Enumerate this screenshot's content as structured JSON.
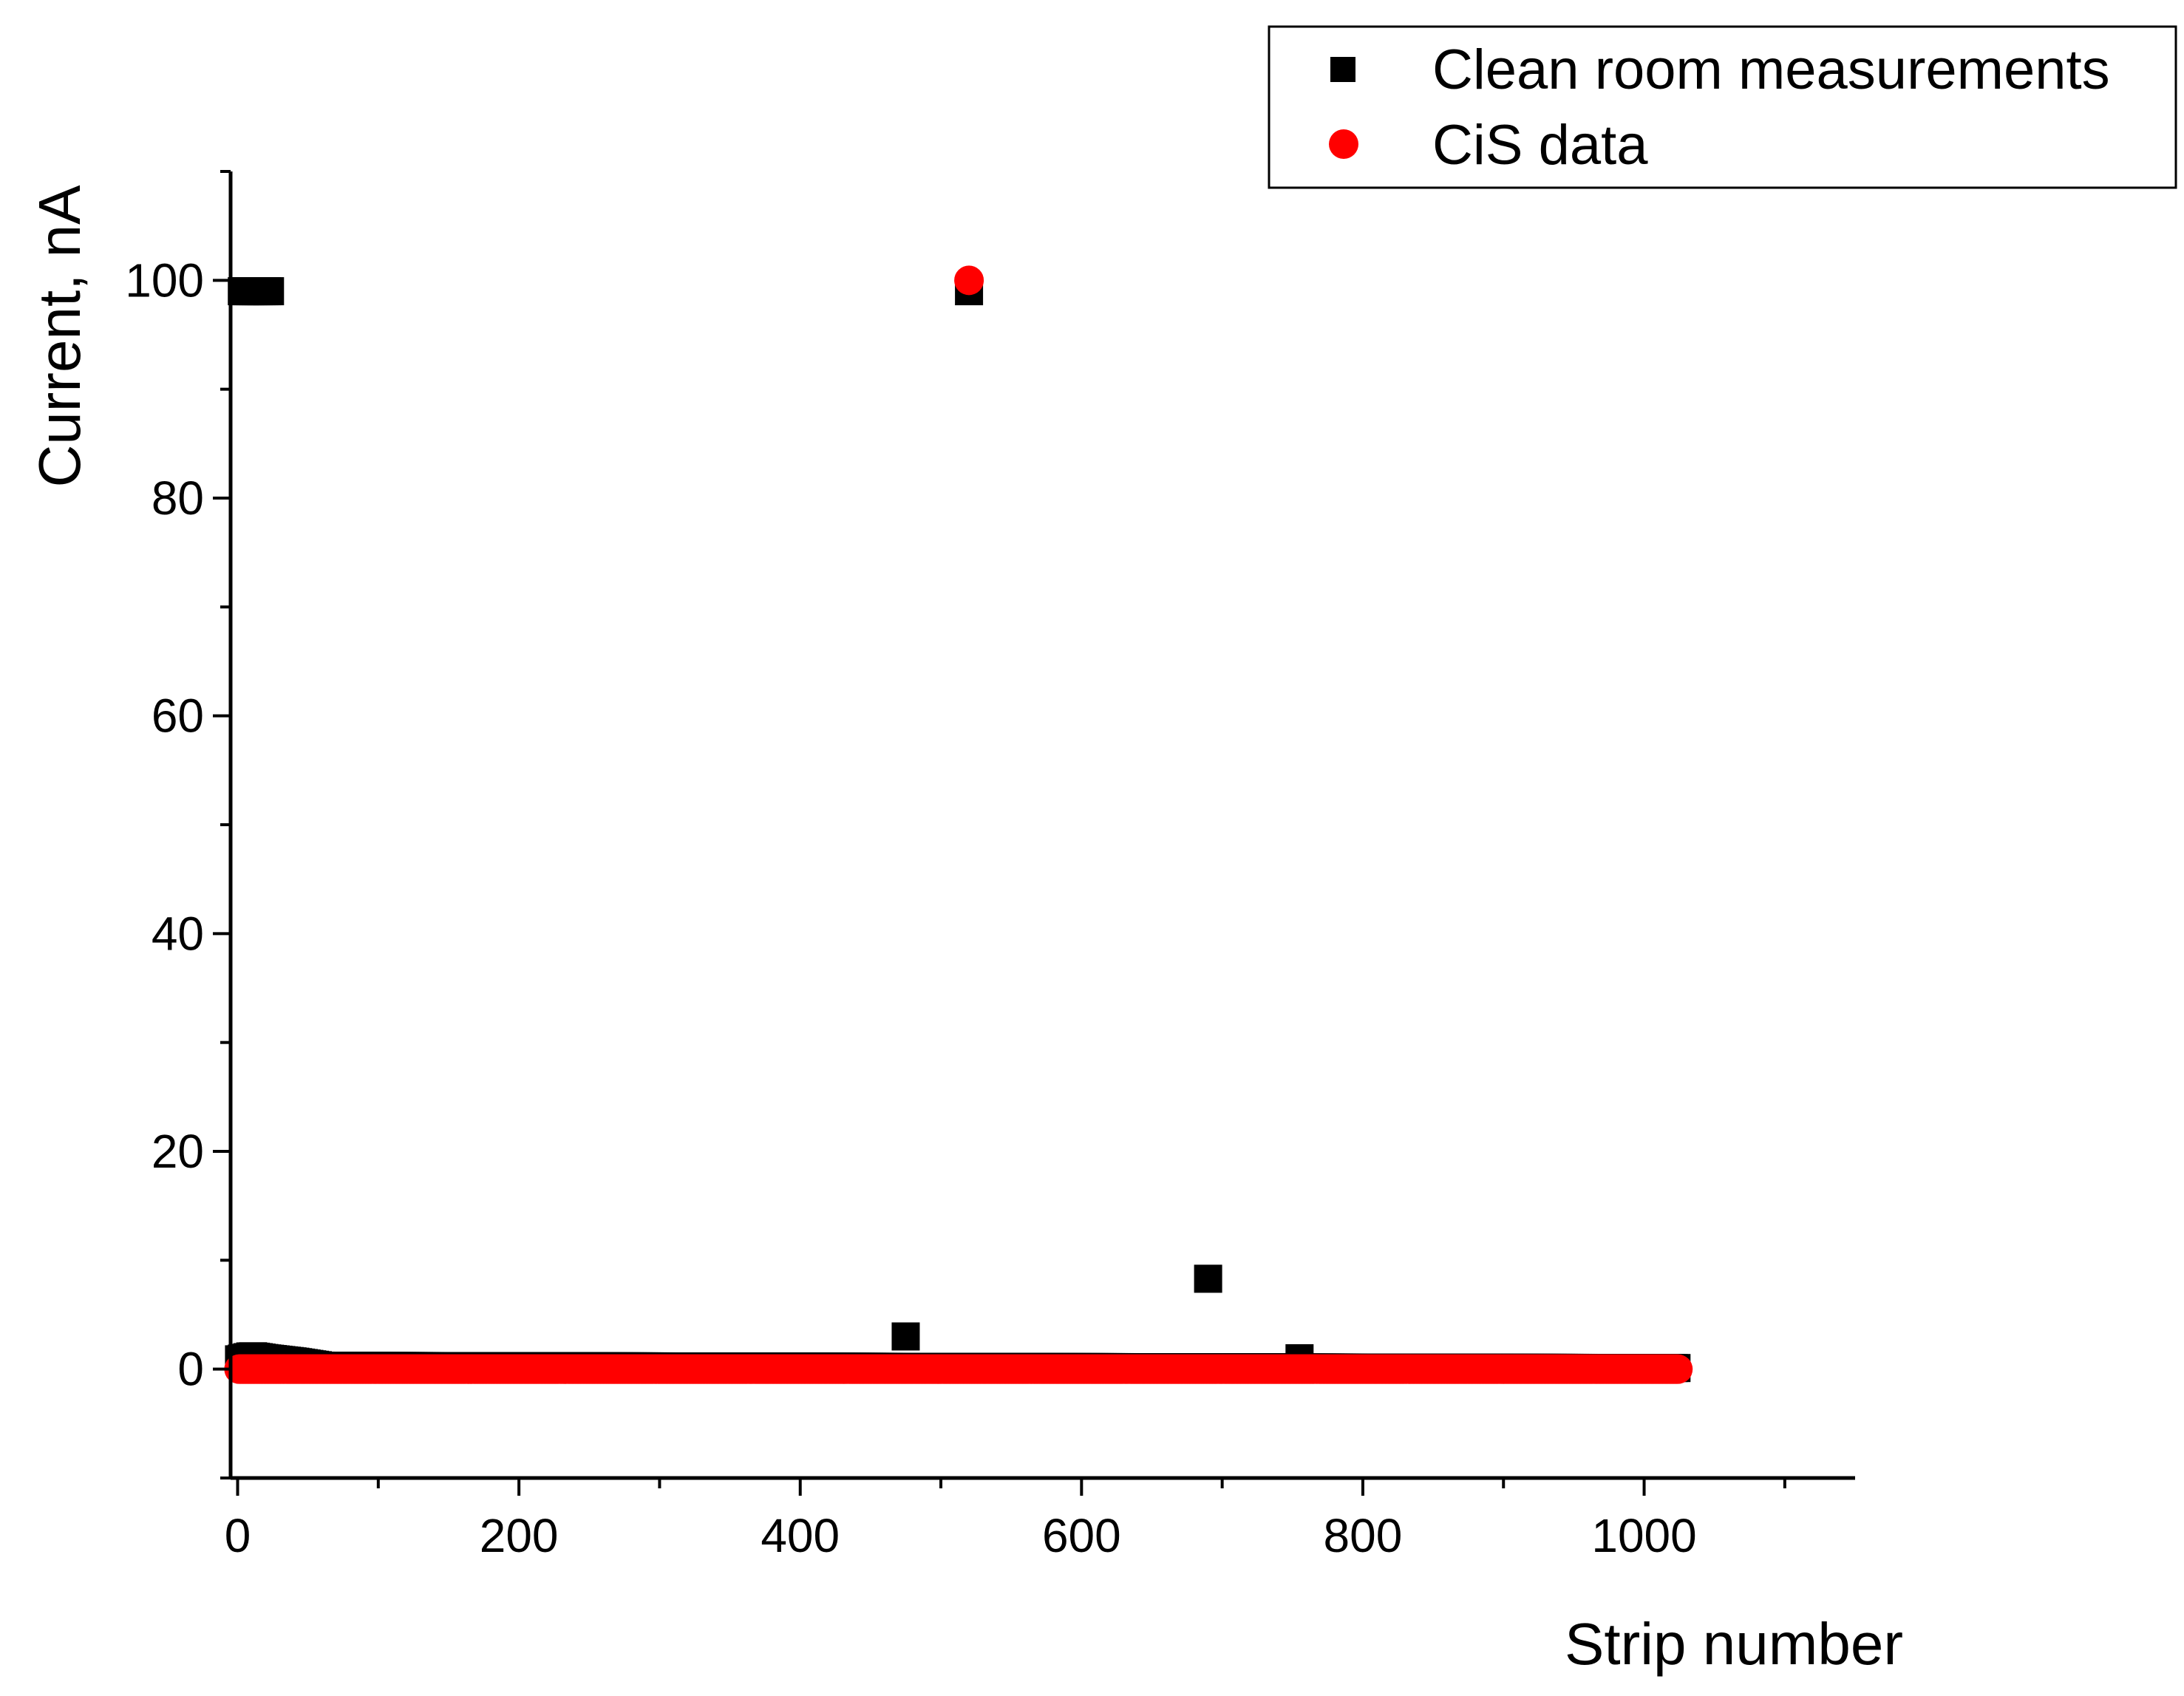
{
  "chart_data": {
    "type": "scatter",
    "xlabel": "Strip number",
    "ylabel": "Current, nA",
    "xlim": [
      -5,
      1150
    ],
    "ylim": [
      -10,
      110
    ],
    "x_ticks": [
      0,
      200,
      400,
      600,
      800,
      1000
    ],
    "y_ticks": [
      0,
      20,
      40,
      60,
      80,
      100
    ],
    "x_minor_step": 100,
    "y_minor_step": 10,
    "legend_position": "top-right",
    "grid": false,
    "series": [
      {
        "name": "Clean room measurements",
        "marker": "square",
        "color": "#000000",
        "points": [
          [
            3,
            99
          ],
          [
            5,
            99
          ],
          [
            7,
            99
          ],
          [
            9,
            99
          ],
          [
            11,
            99
          ],
          [
            13,
            99
          ],
          [
            15,
            99
          ],
          [
            17,
            99
          ],
          [
            19,
            99
          ],
          [
            21,
            99
          ],
          [
            23,
            99
          ],
          [
            475,
            3
          ],
          [
            520,
            99
          ],
          [
            690,
            8.3
          ],
          [
            755,
            1
          ]
        ],
        "baseline": {
          "x_start": 1,
          "x_end": 1024,
          "step": 2,
          "profile": [
            [
              1,
              0.9
            ],
            [
              10,
              1.2
            ],
            [
              20,
              1.0
            ],
            [
              40,
              0.7
            ],
            [
              60,
              0.3
            ],
            [
              1024,
              0.1
            ]
          ]
        }
      },
      {
        "name": "CiS data",
        "marker": "circle",
        "color": "#ff0000",
        "points": [
          [
            520,
            100
          ]
        ],
        "baseline": {
          "x_start": 1,
          "x_end": 1024,
          "step": 1,
          "value": 0
        }
      }
    ]
  }
}
